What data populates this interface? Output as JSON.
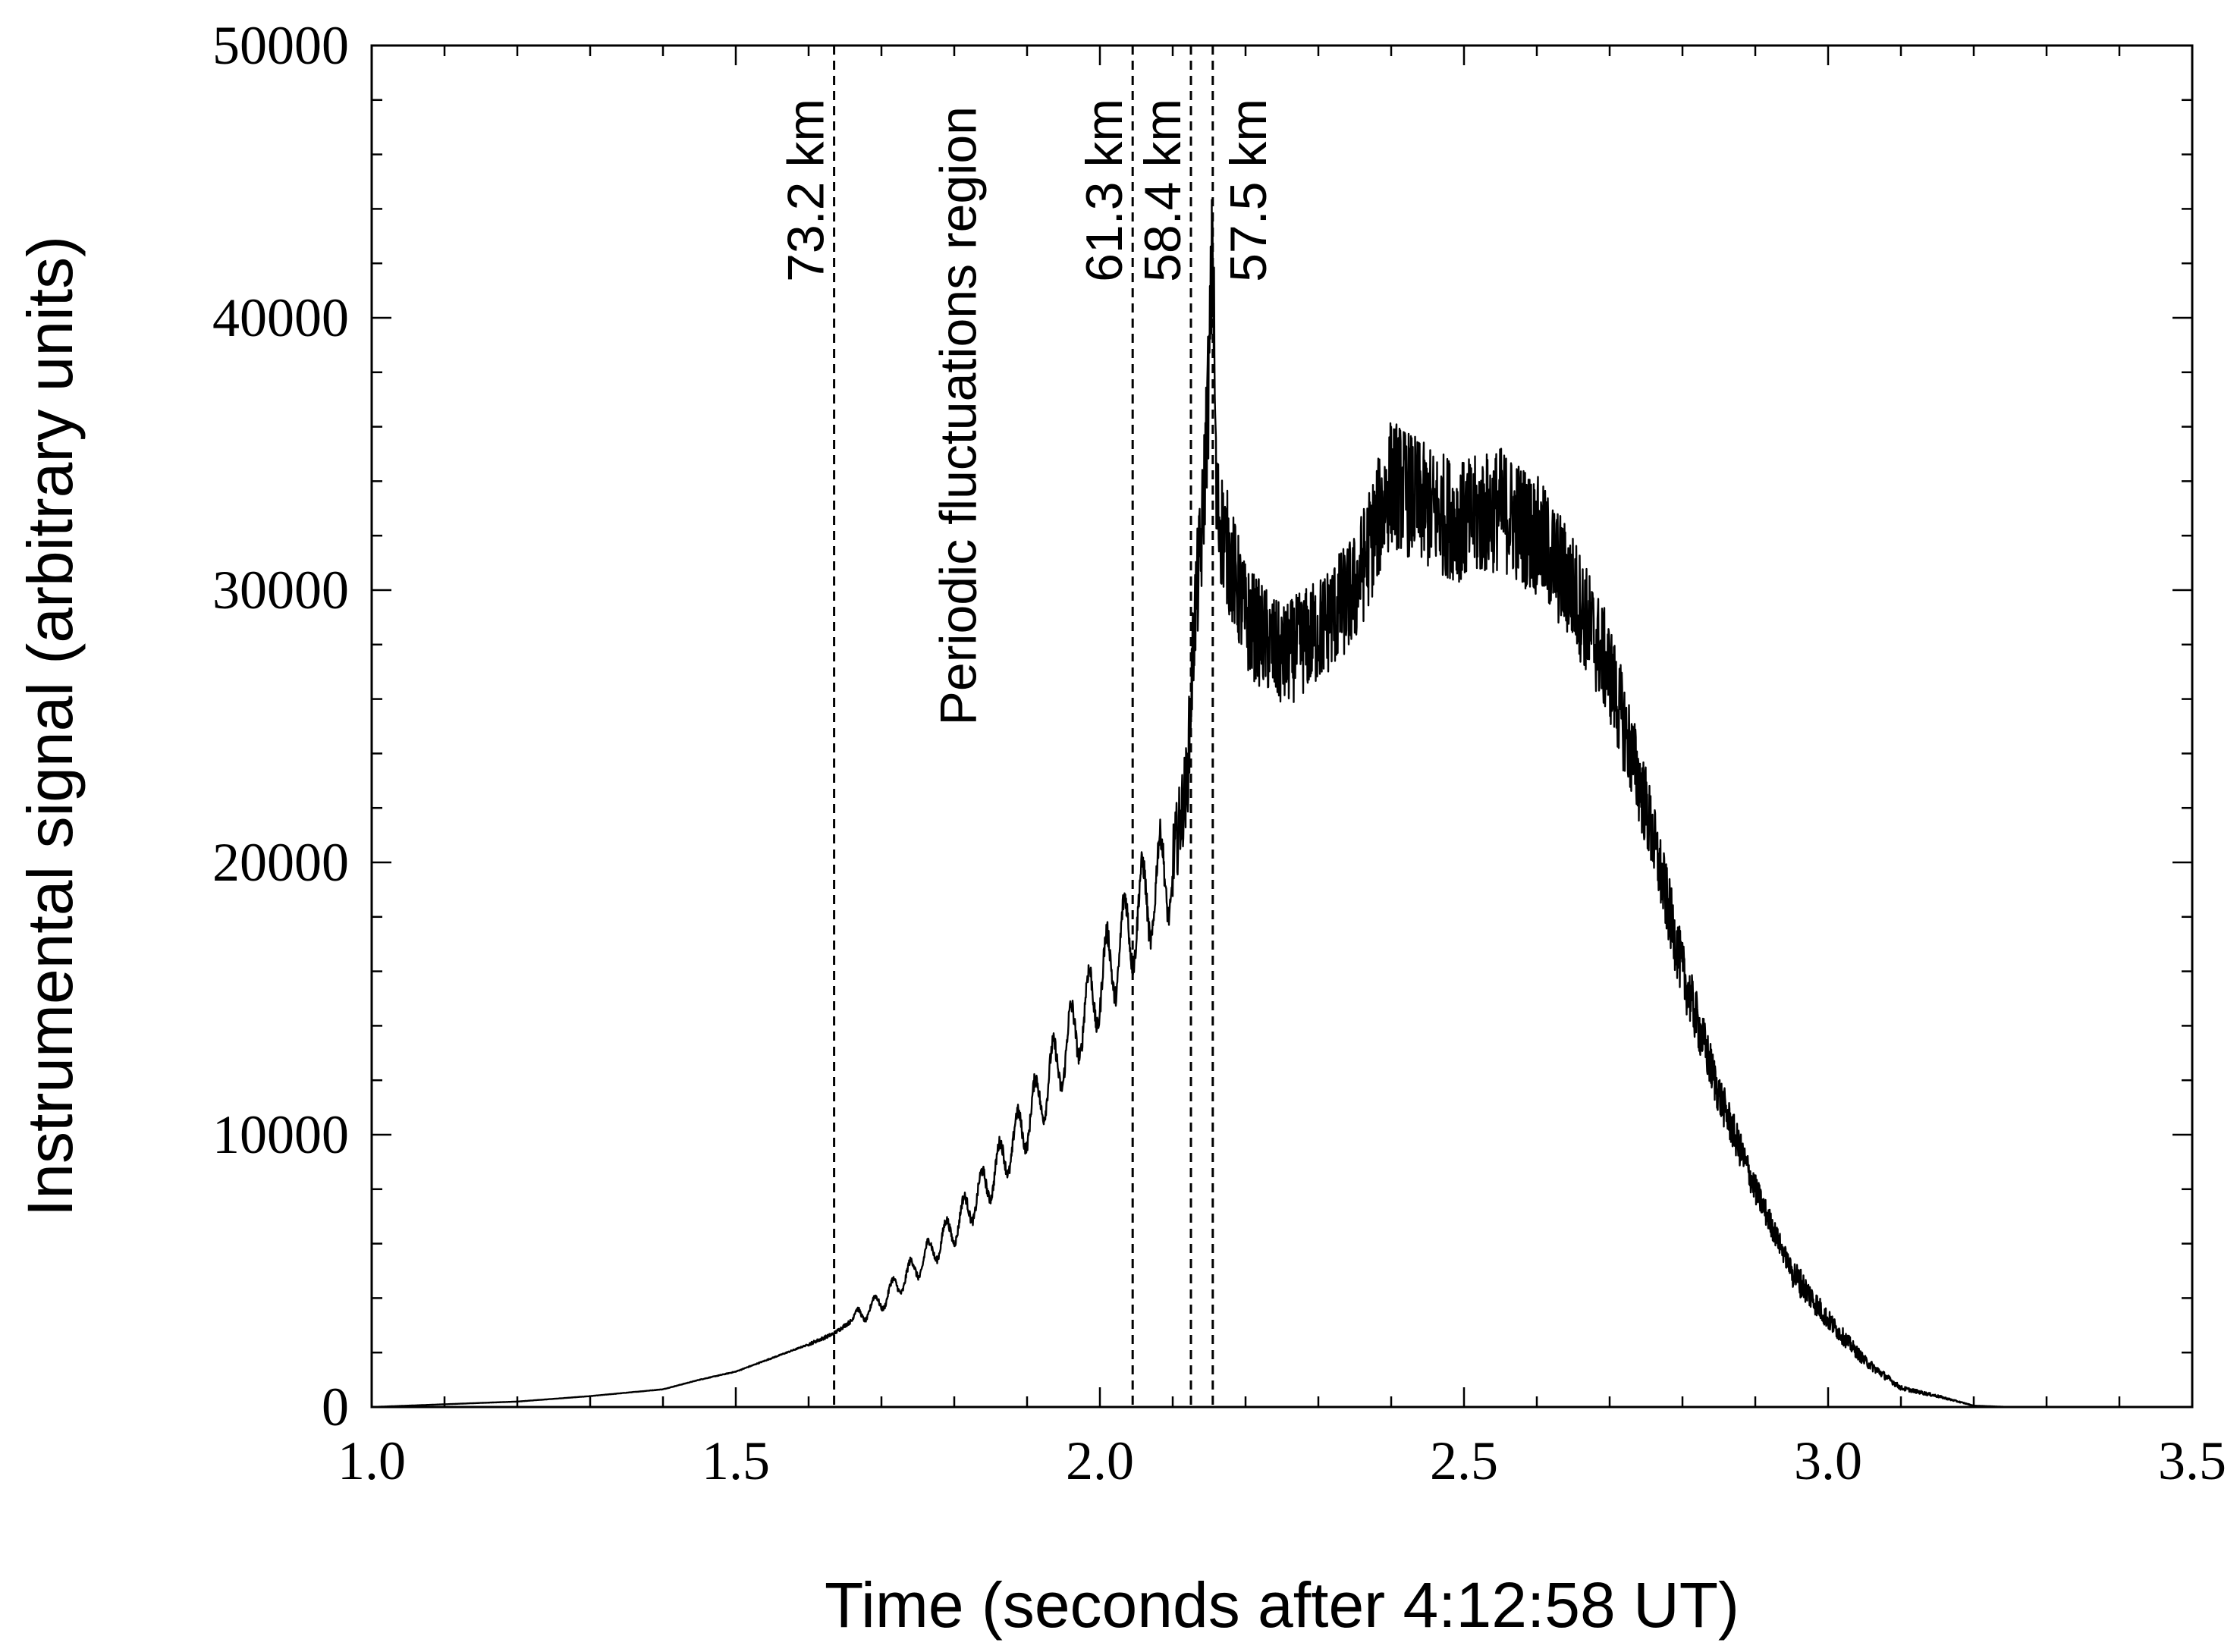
{
  "chart_data": {
    "type": "line",
    "xlabel": "Time (seconds after 4:12:58 UT)",
    "ylabel": "Instrumental signal (arbitrary units)",
    "xlim": [
      1.0,
      3.5
    ],
    "ylim": [
      0,
      50000
    ],
    "x_ticks": [
      "1.0",
      "1.5",
      "2.0",
      "2.5",
      "3.0",
      "3.5"
    ],
    "y_ticks": [
      "0",
      "10000",
      "20000",
      "30000",
      "40000",
      "50000"
    ],
    "x_tick_values": [
      1.0,
      1.5,
      2.0,
      2.5,
      3.0,
      3.5
    ],
    "y_tick_values": [
      0,
      10000,
      20000,
      30000,
      40000,
      50000
    ],
    "x_minor_step": 0.1,
    "y_minor_step": 2000,
    "grid": false,
    "vertical_markers": [
      {
        "x": 1.635,
        "label": "73.2 km"
      },
      {
        "x": 2.045,
        "label": "61.3 km"
      },
      {
        "x": 2.125,
        "label": "58.4 km"
      },
      {
        "x": 2.155,
        "label": "57.5 km"
      }
    ],
    "annotations": [
      {
        "text": "Periodic fluctuations region",
        "x": 1.84,
        "y": 20000
      }
    ],
    "series": [
      {
        "x": [
          1.0,
          1.1,
          1.2,
          1.3,
          1.4,
          1.45,
          1.5,
          1.55,
          1.6,
          1.635,
          1.65,
          1.7,
          1.75,
          1.8,
          1.85,
          1.9,
          1.95,
          2.0,
          2.05,
          2.1,
          2.12,
          2.13,
          2.14,
          2.15,
          2.155,
          2.16,
          2.2,
          2.25,
          2.3,
          2.35,
          2.4,
          2.45,
          2.5,
          2.55,
          2.6,
          2.65,
          2.7,
          2.75,
          2.8,
          2.85,
          2.9,
          2.95,
          3.0,
          3.05,
          3.1,
          3.15,
          3.2,
          3.25,
          3.3,
          3.5
        ],
        "y": [
          0,
          100,
          200,
          400,
          650,
          1000,
          1300,
          1800,
          2300,
          2700,
          3000,
          3900,
          5200,
          6600,
          8400,
          10500,
          13000,
          15500,
          18000,
          20000,
          23000,
          29000,
          32000,
          38000,
          43000,
          33000,
          29000,
          27500,
          28500,
          30000,
          34000,
          33000,
          32500,
          33000,
          32000,
          30000,
          27000,
          22000,
          16000,
          11500,
          8000,
          5000,
          3200,
          1700,
          700,
          400,
          50,
          0,
          0,
          0
        ]
      }
    ]
  }
}
